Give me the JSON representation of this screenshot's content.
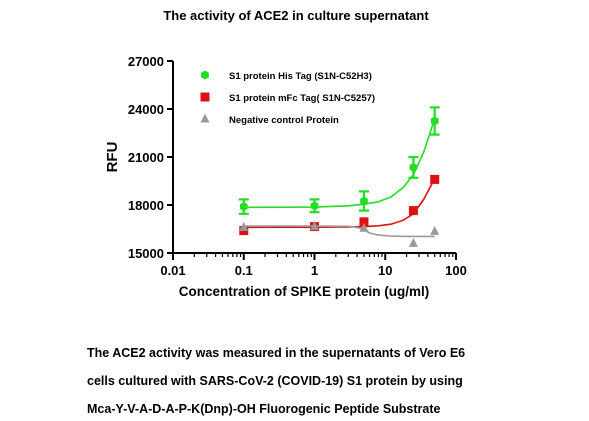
{
  "chart_data": {
    "type": "scatter",
    "title": "The activity of ACE2 in culture supernatant",
    "xlabel": "Concentration of SPIKE protein  (ug/ml)",
    "ylabel": "RFU",
    "x_scale": "log",
    "xlim": [
      0.01,
      100
    ],
    "ylim": [
      15000,
      27000
    ],
    "x_ticks": [
      "0.01",
      "0.1",
      "1",
      "10",
      "100"
    ],
    "y_ticks": [
      "15000",
      "18000",
      "21000",
      "24000",
      "27000"
    ],
    "grid": false,
    "legend_position": "top-left",
    "series": [
      {
        "name": "S1 protein His Tag (S1N-C52H3)",
        "color": "#22dd22",
        "marker": "hexagon",
        "x": [
          0.1,
          1,
          5,
          25,
          50
        ],
        "y": [
          17900,
          17950,
          18250,
          20350,
          23250
        ],
        "err": [
          450,
          400,
          600,
          650,
          850
        ],
        "fit": [
          [
            0.1,
            17850
          ],
          [
            1,
            17870
          ],
          [
            3,
            17950
          ],
          [
            5,
            18050
          ],
          [
            8,
            18200
          ],
          [
            12,
            18500
          ],
          [
            18,
            19100
          ],
          [
            25,
            19900
          ],
          [
            35,
            21300
          ],
          [
            50,
            23400
          ]
        ]
      },
      {
        "name": "S1 protein mFc Tag( S1N-C5257)",
        "color": "#dd1111",
        "marker": "square",
        "x": [
          0.1,
          1,
          5,
          25,
          50
        ],
        "y": [
          16400,
          16650,
          16950,
          17650,
          19600
        ],
        "err": [
          0,
          0,
          0,
          0,
          0
        ],
        "fit": [
          [
            0.1,
            16600
          ],
          [
            1,
            16610
          ],
          [
            3,
            16630
          ],
          [
            5,
            16650
          ],
          [
            8,
            16700
          ],
          [
            12,
            16800
          ],
          [
            18,
            17050
          ],
          [
            25,
            17450
          ],
          [
            35,
            18350
          ],
          [
            50,
            19650
          ]
        ]
      },
      {
        "name": "Negative control Protein",
        "color": "#999999",
        "marker": "triangle",
        "x": [
          0.1,
          1,
          5,
          25,
          50
        ],
        "y": [
          16600,
          16650,
          16550,
          15600,
          16350
        ],
        "err": [
          0,
          0,
          0,
          0,
          0
        ],
        "fit": [
          [
            0.1,
            16680
          ],
          [
            1,
            16680
          ],
          [
            3,
            16670
          ],
          [
            4,
            16600
          ],
          [
            5,
            16450
          ],
          [
            6,
            16250
          ],
          [
            8,
            16120
          ],
          [
            12,
            16060
          ],
          [
            20,
            16040
          ],
          [
            50,
            16040
          ]
        ]
      }
    ]
  },
  "caption_lines": [
    "The ACE2 activity was measured in the supernatants of Vero E6",
    "cells cultured with SARS-CoV-2 (COVID-19) S1 protein  by using",
    "Mca-Y-V-A-D-A-P-K(Dnp)-OH Fluorogenic Peptide Substrate"
  ]
}
